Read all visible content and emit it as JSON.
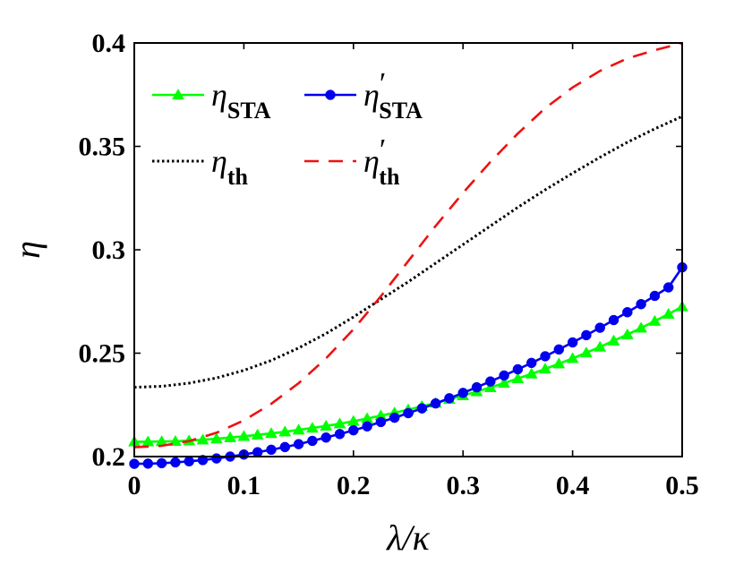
{
  "chart_data": {
    "type": "line",
    "title": "",
    "xlabel": "λ/κ",
    "ylabel": "η",
    "xlim": [
      0,
      0.5
    ],
    "ylim": [
      0.2,
      0.4
    ],
    "xticks": [
      "0",
      "0.1",
      "0.2",
      "0.3",
      "0.4",
      "0.5"
    ],
    "yticks": [
      "0.2",
      "0.25",
      "0.3",
      "0.35",
      "0.4"
    ],
    "grid": false,
    "legend_position": "top-left",
    "series": [
      {
        "key": "eta_sta",
        "name": "η_STA",
        "symbol": "η",
        "subscript": "STA",
        "prime": "",
        "color": "#00ff00",
        "style": "solid",
        "marker": "triangle",
        "x": [
          0,
          0.0125,
          0.025,
          0.0375,
          0.05,
          0.0625,
          0.075,
          0.0875,
          0.1,
          0.1125,
          0.125,
          0.1375,
          0.15,
          0.1625,
          0.175,
          0.1875,
          0.2,
          0.2125,
          0.225,
          0.2375,
          0.25,
          0.2625,
          0.275,
          0.2875,
          0.3,
          0.3125,
          0.325,
          0.3375,
          0.35,
          0.3625,
          0.375,
          0.3875,
          0.4,
          0.4125,
          0.425,
          0.4375,
          0.45,
          0.4625,
          0.475,
          0.4875,
          0.5
        ],
        "values": [
          0.2072,
          0.2072,
          0.2073,
          0.2074,
          0.2077,
          0.2081,
          0.2086,
          0.2092,
          0.2098,
          0.2105,
          0.2112,
          0.212,
          0.2129,
          0.2138,
          0.2148,
          0.2159,
          0.2171,
          0.2184,
          0.2198,
          0.2212,
          0.2227,
          0.2243,
          0.2259,
          0.2277,
          0.2295,
          0.2314,
          0.2334,
          0.2355,
          0.2377,
          0.24,
          0.2424,
          0.2449,
          0.2475,
          0.2502,
          0.253,
          0.256,
          0.259,
          0.2622,
          0.2655,
          0.2689,
          0.2725
        ]
      },
      {
        "key": "eta_sta_prime",
        "name": "η′_STA",
        "symbol": "η",
        "subscript": "STA",
        "prime": "′",
        "color": "#0000ee",
        "style": "solid",
        "marker": "circle",
        "x": [
          0,
          0.0125,
          0.025,
          0.0375,
          0.05,
          0.0625,
          0.075,
          0.0875,
          0.1,
          0.1125,
          0.125,
          0.1375,
          0.15,
          0.1625,
          0.175,
          0.1875,
          0.2,
          0.2125,
          0.225,
          0.2375,
          0.25,
          0.2625,
          0.275,
          0.2875,
          0.3,
          0.3125,
          0.325,
          0.3375,
          0.35,
          0.3625,
          0.375,
          0.3875,
          0.4,
          0.4125,
          0.425,
          0.4375,
          0.45,
          0.4625,
          0.475,
          0.4875,
          0.5
        ],
        "values": [
          0.1965,
          0.1966,
          0.1968,
          0.1972,
          0.1977,
          0.1983,
          0.1991,
          0.2,
          0.201,
          0.2021,
          0.2033,
          0.2046,
          0.206,
          0.2076,
          0.2092,
          0.2109,
          0.2127,
          0.2146,
          0.2167,
          0.2188,
          0.221,
          0.2233,
          0.2257,
          0.2282,
          0.2308,
          0.2335,
          0.2363,
          0.2392,
          0.2422,
          0.2453,
          0.2485,
          0.2518,
          0.2552,
          0.2587,
          0.2623,
          0.266,
          0.2698,
          0.2737,
          0.2777,
          0.2818,
          0.2915
        ]
      },
      {
        "key": "eta_th",
        "name": "η_th",
        "symbol": "η",
        "subscript": "th",
        "prime": "",
        "color": "#000000",
        "style": "dotted",
        "marker": "none",
        "x": [
          0,
          0.025,
          0.05,
          0.075,
          0.1,
          0.125,
          0.15,
          0.175,
          0.2,
          0.225,
          0.25,
          0.275,
          0.3,
          0.325,
          0.35,
          0.375,
          0.4,
          0.425,
          0.45,
          0.475,
          0.5
        ],
        "values": [
          0.2335,
          0.234,
          0.2355,
          0.238,
          0.2417,
          0.2465,
          0.2525,
          0.2595,
          0.2675,
          0.276,
          0.2845,
          0.2935,
          0.3025,
          0.3115,
          0.3205,
          0.329,
          0.337,
          0.3447,
          0.352,
          0.3585,
          0.3645
        ]
      },
      {
        "key": "eta_th_prime",
        "name": "η′_th",
        "symbol": "η",
        "subscript": "th",
        "prime": "′",
        "color": "#ee1111",
        "style": "dashed",
        "marker": "none",
        "x": [
          0,
          0.025,
          0.05,
          0.075,
          0.1,
          0.125,
          0.15,
          0.175,
          0.2,
          0.225,
          0.25,
          0.275,
          0.3,
          0.325,
          0.35,
          0.375,
          0.4,
          0.425,
          0.45,
          0.475,
          0.5
        ],
        "values": [
          0.2045,
          0.2052,
          0.2075,
          0.2115,
          0.2175,
          0.2255,
          0.2355,
          0.2475,
          0.2615,
          0.2775,
          0.2945,
          0.3115,
          0.3275,
          0.3425,
          0.3562,
          0.3685,
          0.3785,
          0.3865,
          0.3925,
          0.3965,
          0.4
        ]
      }
    ]
  }
}
